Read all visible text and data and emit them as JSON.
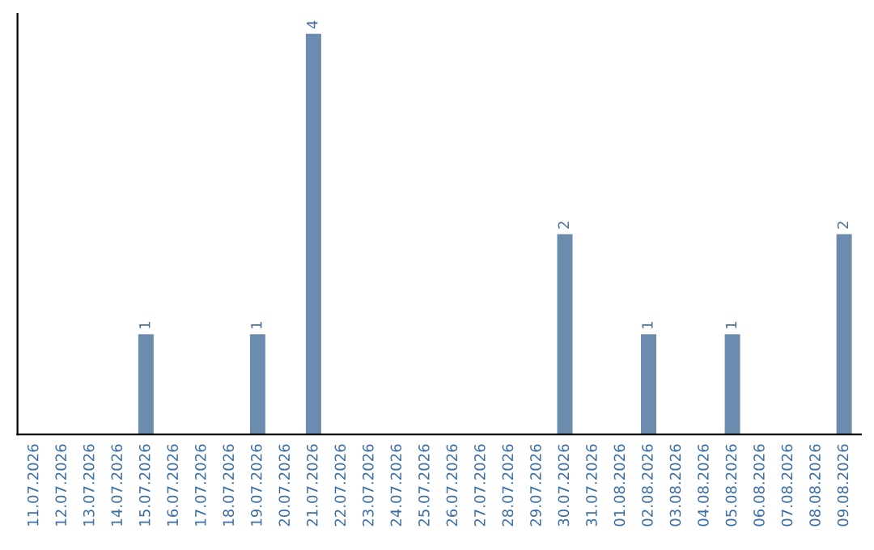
{
  "chart_data": {
    "type": "bar",
    "categories": [
      "11.07.2026",
      "12.07.2026",
      "13.07.2026",
      "14.07.2026",
      "15.07.2026",
      "16.07.2026",
      "17.07.2026",
      "18.07.2026",
      "19.07.2026",
      "20.07.2026",
      "21.07.2026",
      "22.07.2026",
      "23.07.2026",
      "24.07.2026",
      "25.07.2026",
      "26.07.2026",
      "27.07.2026",
      "28.07.2026",
      "29.07.2026",
      "30.07.2026",
      "31.07.2026",
      "01.08.2026",
      "02.08.2026",
      "03.08.2026",
      "04.08.2026",
      "05.08.2026",
      "06.08.2026",
      "07.08.2026",
      "08.08.2026",
      "09.08.2026"
    ],
    "values": [
      0,
      0,
      0,
      0,
      1,
      0,
      0,
      0,
      1,
      0,
      4,
      0,
      0,
      0,
      0,
      0,
      0,
      0,
      0,
      2,
      0,
      0,
      1,
      0,
      0,
      1,
      0,
      0,
      0,
      2
    ],
    "value_labels": [
      null,
      null,
      null,
      null,
      "1",
      null,
      null,
      null,
      "1",
      null,
      "4",
      null,
      null,
      null,
      null,
      null,
      null,
      null,
      null,
      "2",
      null,
      null,
      "1",
      null,
      null,
      "1",
      null,
      null,
      null,
      "2"
    ],
    "color": "#6b8cae",
    "ylim": [
      0,
      4.2
    ],
    "tick_labels": "x",
    "grid": false,
    "legend": false
  }
}
